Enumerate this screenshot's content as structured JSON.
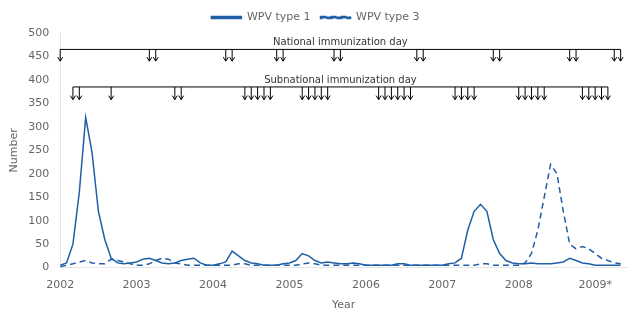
{
  "chart_data": {
    "type": "line",
    "xlabel": "Year",
    "ylabel": "Number",
    "x": [
      2002,
      2002.0833333333333,
      2002.1666666666667,
      2002.25,
      2002.3333333333333,
      2002.4166666666667,
      2002.5,
      2002.5833333333333,
      2002.6666666666667,
      2002.75,
      2002.8333333333333,
      2002.9166666666667,
      2003,
      2003.0833333333333,
      2003.1666666666667,
      2003.25,
      2003.3333333333333,
      2003.4166666666667,
      2003.5,
      2003.5833333333333,
      2003.6666666666667,
      2003.75,
      2003.8333333333333,
      2003.9166666666667,
      2004,
      2004.0833333333333,
      2004.1666666666667,
      2004.25,
      2004.3333333333333,
      2004.4166666666667,
      2004.5,
      2004.5833333333333,
      2004.6666666666667,
      2004.75,
      2004.8333333333333,
      2004.9166666666667,
      2005,
      2005.0833333333333,
      2005.1666666666667,
      2005.25,
      2005.3333333333333,
      2005.4166666666667,
      2005.5,
      2005.5833333333333,
      2005.6666666666667,
      2005.75,
      2005.8333333333333,
      2005.9166666666667,
      2006,
      2006.0833333333333,
      2006.1666666666667,
      2006.25,
      2006.3333333333333,
      2006.4166666666667,
      2006.5,
      2006.5833333333333,
      2006.6666666666667,
      2006.75,
      2006.8333333333333,
      2006.9166666666667,
      2007,
      2007.0833333333333,
      2007.1666666666667,
      2007.25,
      2007.3333333333333,
      2007.4166666666667,
      2007.5,
      2007.5833333333333,
      2007.6666666666667,
      2007.75,
      2007.8333333333333,
      2007.9166666666667,
      2008,
      2008.0833333333333,
      2008.1666666666667,
      2008.25,
      2008.3333333333333,
      2008.4166666666667,
      2008.5,
      2008.5833333333333,
      2008.6666666666667,
      2008.75,
      2008.8333333333333,
      2008.9166666666667,
      2009,
      2009.0833333333333,
      2009.1666666666667,
      2009.25,
      2009.3333333333333
    ],
    "series": [
      {
        "name": "WPV type 1",
        "color": "#1f5fa6",
        "line_style": "solid",
        "values": [
          5,
          10,
          50,
          160,
          320,
          245,
          120,
          60,
          20,
          10,
          8,
          10,
          12,
          18,
          20,
          15,
          10,
          8,
          10,
          15,
          18,
          20,
          10,
          5,
          5,
          8,
          12,
          35,
          25,
          15,
          10,
          8,
          5,
          5,
          5,
          8,
          10,
          15,
          30,
          25,
          15,
          10,
          12,
          10,
          8,
          8,
          10,
          8,
          5,
          5,
          5,
          5,
          5,
          8,
          8,
          5,
          5,
          5,
          5,
          5,
          5,
          8,
          10,
          20,
          80,
          120,
          135,
          120,
          60,
          30,
          15,
          10,
          8,
          8,
          10,
          8,
          8,
          8,
          10,
          12,
          20,
          15,
          10,
          8,
          5,
          5,
          5,
          5,
          5
        ]
      },
      {
        "name": "WPV type 3",
        "color": "#1f5fa6",
        "line_style": "dashed",
        "values": [
          2,
          5,
          8,
          12,
          15,
          10,
          8,
          8,
          18,
          15,
          12,
          8,
          5,
          5,
          8,
          15,
          20,
          18,
          10,
          8,
          5,
          5,
          5,
          5,
          5,
          5,
          5,
          5,
          8,
          8,
          5,
          5,
          5,
          5,
          5,
          5,
          5,
          5,
          8,
          10,
          8,
          5,
          5,
          5,
          5,
          5,
          5,
          5,
          5,
          5,
          5,
          5,
          5,
          5,
          5,
          5,
          5,
          5,
          5,
          5,
          5,
          5,
          5,
          5,
          5,
          5,
          8,
          8,
          5,
          5,
          5,
          5,
          5,
          10,
          30,
          80,
          150,
          220,
          200,
          120,
          50,
          40,
          45,
          40,
          30,
          20,
          15,
          10,
          8
        ]
      }
    ],
    "xlim": [
      2002,
      2009.4166666666667
    ],
    "xticks": [
      2002,
      2003,
      2004,
      2005,
      2006,
      2007,
      2008,
      {
        "value": 2009,
        "label": "2009*"
      }
    ],
    "ylim": [
      0,
      500
    ],
    "yticks": [
      0,
      50,
      100,
      150,
      200,
      250,
      300,
      350,
      400,
      450,
      500
    ],
    "grid": false,
    "legend": "top",
    "annotations": [
      {
        "text": "National immunization day",
        "x": [
          2002,
          2003.1666666666667,
          2003.25,
          2004.1666666666667,
          2004.25,
          2004.8333333333333,
          2004.9166666666667,
          2005.5833333333333,
          2005.6666666666667,
          2006.6666666666667,
          2006.75,
          2007.6666666666667,
          2007.75,
          2008.6666666666667,
          2008.75,
          2009.25,
          2009.3333333333333
        ]
      },
      {
        "text": "Subnational immunization day",
        "x": [
          2002.1666666666667,
          2002.25,
          2002.6666666666667,
          2003.5,
          2003.5833333333333,
          2004.4166666666667,
          2004.5,
          2004.5833333333333,
          2004.6666666666667,
          2004.75,
          2005.1666666666667,
          2005.25,
          2005.3333333333333,
          2005.4166666666667,
          2005.5,
          2006.1666666666667,
          2006.25,
          2006.3333333333333,
          2006.4166666666667,
          2006.5,
          2006.5833333333333,
          2007.1666666666667,
          2007.25,
          2007.3333333333333,
          2007.4166666666667,
          2008,
          2008.0833333333333,
          2008.1666666666667,
          2008.25,
          2008.3333333333333,
          2008.8333333333333,
          2008.9166666666667,
          2009,
          2009.0833333333333,
          2009.1666666666667
        ]
      }
    ]
  }
}
